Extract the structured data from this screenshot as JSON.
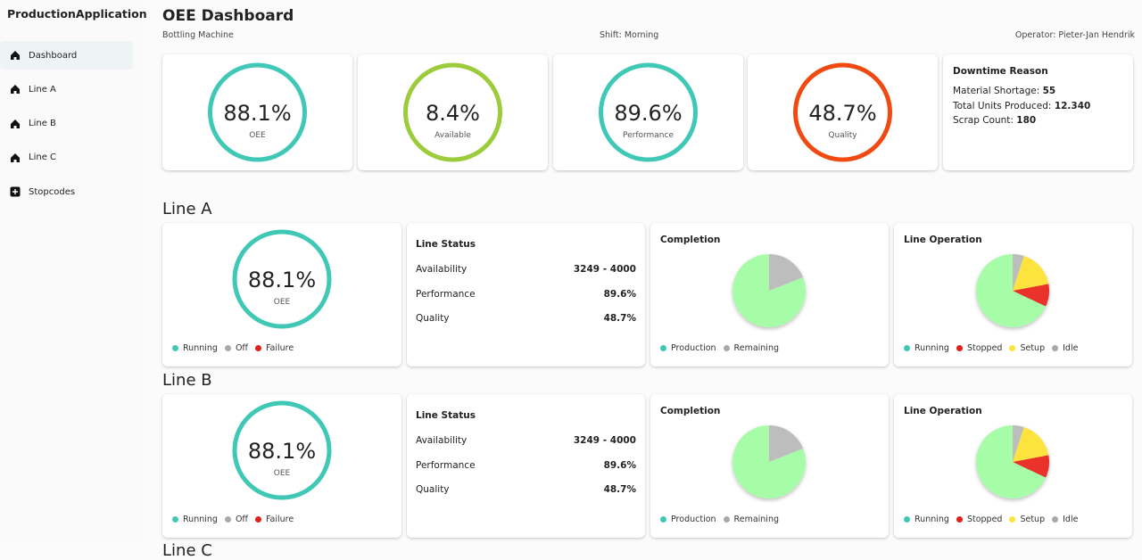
{
  "sidebar": {
    "title": "ProductionApplication",
    "items": [
      "Dashboard",
      "Line A",
      "Line B",
      "Line C",
      "Stopcodes"
    ]
  },
  "header": {
    "title": "OEE Dashboard",
    "machine": "Bottling Machine",
    "shift": "Shift: Morning",
    "operator": "Operator: Pieter-Jan Hendrik"
  },
  "kpis": [
    {
      "value": "88.1%",
      "label": "OEE",
      "color": "#3fc8b6"
    },
    {
      "value": "8.4%",
      "label": "Available",
      "color": "#9ccb3b"
    },
    {
      "value": "89.6%",
      "label": "Performance",
      "color": "#3fc8b6"
    },
    {
      "value": "48.7%",
      "label": "Quality",
      "color": "#f04a12"
    }
  ],
  "downtime": {
    "title": "Downtime Reason",
    "rows": [
      {
        "label": "Material Shortage:",
        "value": "55"
      },
      {
        "label": "Total Units Produced:",
        "value": "12.340"
      },
      {
        "label": "Scrap Count:",
        "value": "180"
      }
    ]
  },
  "lines": [
    {
      "name": "Line A",
      "oee": {
        "value": "88.1%",
        "label": "OEE",
        "color": "#3fc8b6",
        "legend": [
          {
            "name": "Running",
            "color": "#3fc8b6"
          },
          {
            "name": "Off",
            "color": "#a8a8ae"
          },
          {
            "name": "Failure",
            "color": "#e0201c"
          }
        ]
      },
      "status": {
        "title": "Line Status",
        "rows": [
          {
            "label": "Availability",
            "value": "3249 - 4000"
          },
          {
            "label": "Performance",
            "value": "89.6%"
          },
          {
            "label": "Quality",
            "value": "48.7%"
          }
        ]
      },
      "completion": {
        "title": "Completion",
        "series": [
          {
            "name": "Production",
            "color": "#a7fca7",
            "legend_color": "#3fc8b6",
            "value": 81
          },
          {
            "name": "Remaining",
            "color": "#bdbdbd",
            "legend_color": "#a8a8ae",
            "value": 19
          }
        ]
      },
      "operation": {
        "title": "Line Operation",
        "series": [
          {
            "name": "Running",
            "color": "#a7fca7",
            "legend_color": "#3fc8b6",
            "value": 68
          },
          {
            "name": "Stopped",
            "color": "#e8322c",
            "legend_color": "#e0201c",
            "value": 10
          },
          {
            "name": "Setup",
            "color": "#fce33c",
            "legend_color": "#fce33c",
            "value": 17
          },
          {
            "name": "Idle",
            "color": "#bdbdbd",
            "legend_color": "#a8a8ae",
            "value": 5
          }
        ]
      }
    },
    {
      "name": "Line B",
      "oee": {
        "value": "88.1%",
        "label": "OEE",
        "color": "#3fc8b6",
        "legend": [
          {
            "name": "Running",
            "color": "#3fc8b6"
          },
          {
            "name": "Off",
            "color": "#a8a8ae"
          },
          {
            "name": "Failure",
            "color": "#e0201c"
          }
        ]
      },
      "status": {
        "title": "Line Status",
        "rows": [
          {
            "label": "Availability",
            "value": "3249 - 4000"
          },
          {
            "label": "Performance",
            "value": "89.6%"
          },
          {
            "label": "Quality",
            "value": "48.7%"
          }
        ]
      },
      "completion": {
        "title": "Completion",
        "series": [
          {
            "name": "Production",
            "color": "#a7fca7",
            "legend_color": "#3fc8b6",
            "value": 81
          },
          {
            "name": "Remaining",
            "color": "#bdbdbd",
            "legend_color": "#a8a8ae",
            "value": 19
          }
        ]
      },
      "operation": {
        "title": "Line Operation",
        "series": [
          {
            "name": "Running",
            "color": "#a7fca7",
            "legend_color": "#3fc8b6",
            "value": 68
          },
          {
            "name": "Stopped",
            "color": "#e8322c",
            "legend_color": "#e0201c",
            "value": 10
          },
          {
            "name": "Setup",
            "color": "#fce33c",
            "legend_color": "#fce33c",
            "value": 17
          },
          {
            "name": "Idle",
            "color": "#bdbdbd",
            "legend_color": "#a8a8ae",
            "value": 5
          }
        ]
      }
    },
    {
      "name": "Line C"
    }
  ]
}
